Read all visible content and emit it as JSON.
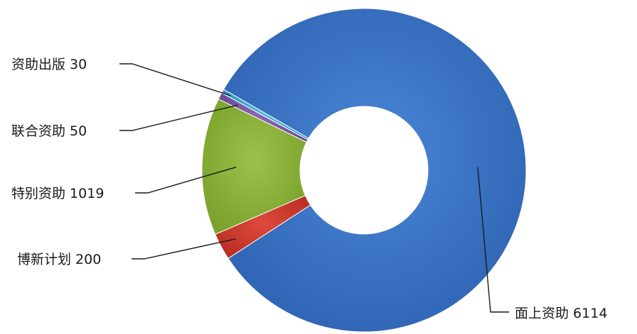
{
  "chart_data": {
    "type": "pie",
    "variant": "donut",
    "title": "",
    "categories": [
      "面上资助",
      "博新计划",
      "特别资助",
      "联合资助",
      "资助出版"
    ],
    "values": [
      6114,
      200,
      1019,
      50,
      30
    ],
    "value_labels": [
      "6114",
      "200",
      "1019",
      "50",
      "30"
    ],
    "colors": [
      "#3a74c6",
      "#cc3a2e",
      "#8db33a",
      "#7e5aa6",
      "#3aaad2"
    ],
    "legend": "none"
  }
}
